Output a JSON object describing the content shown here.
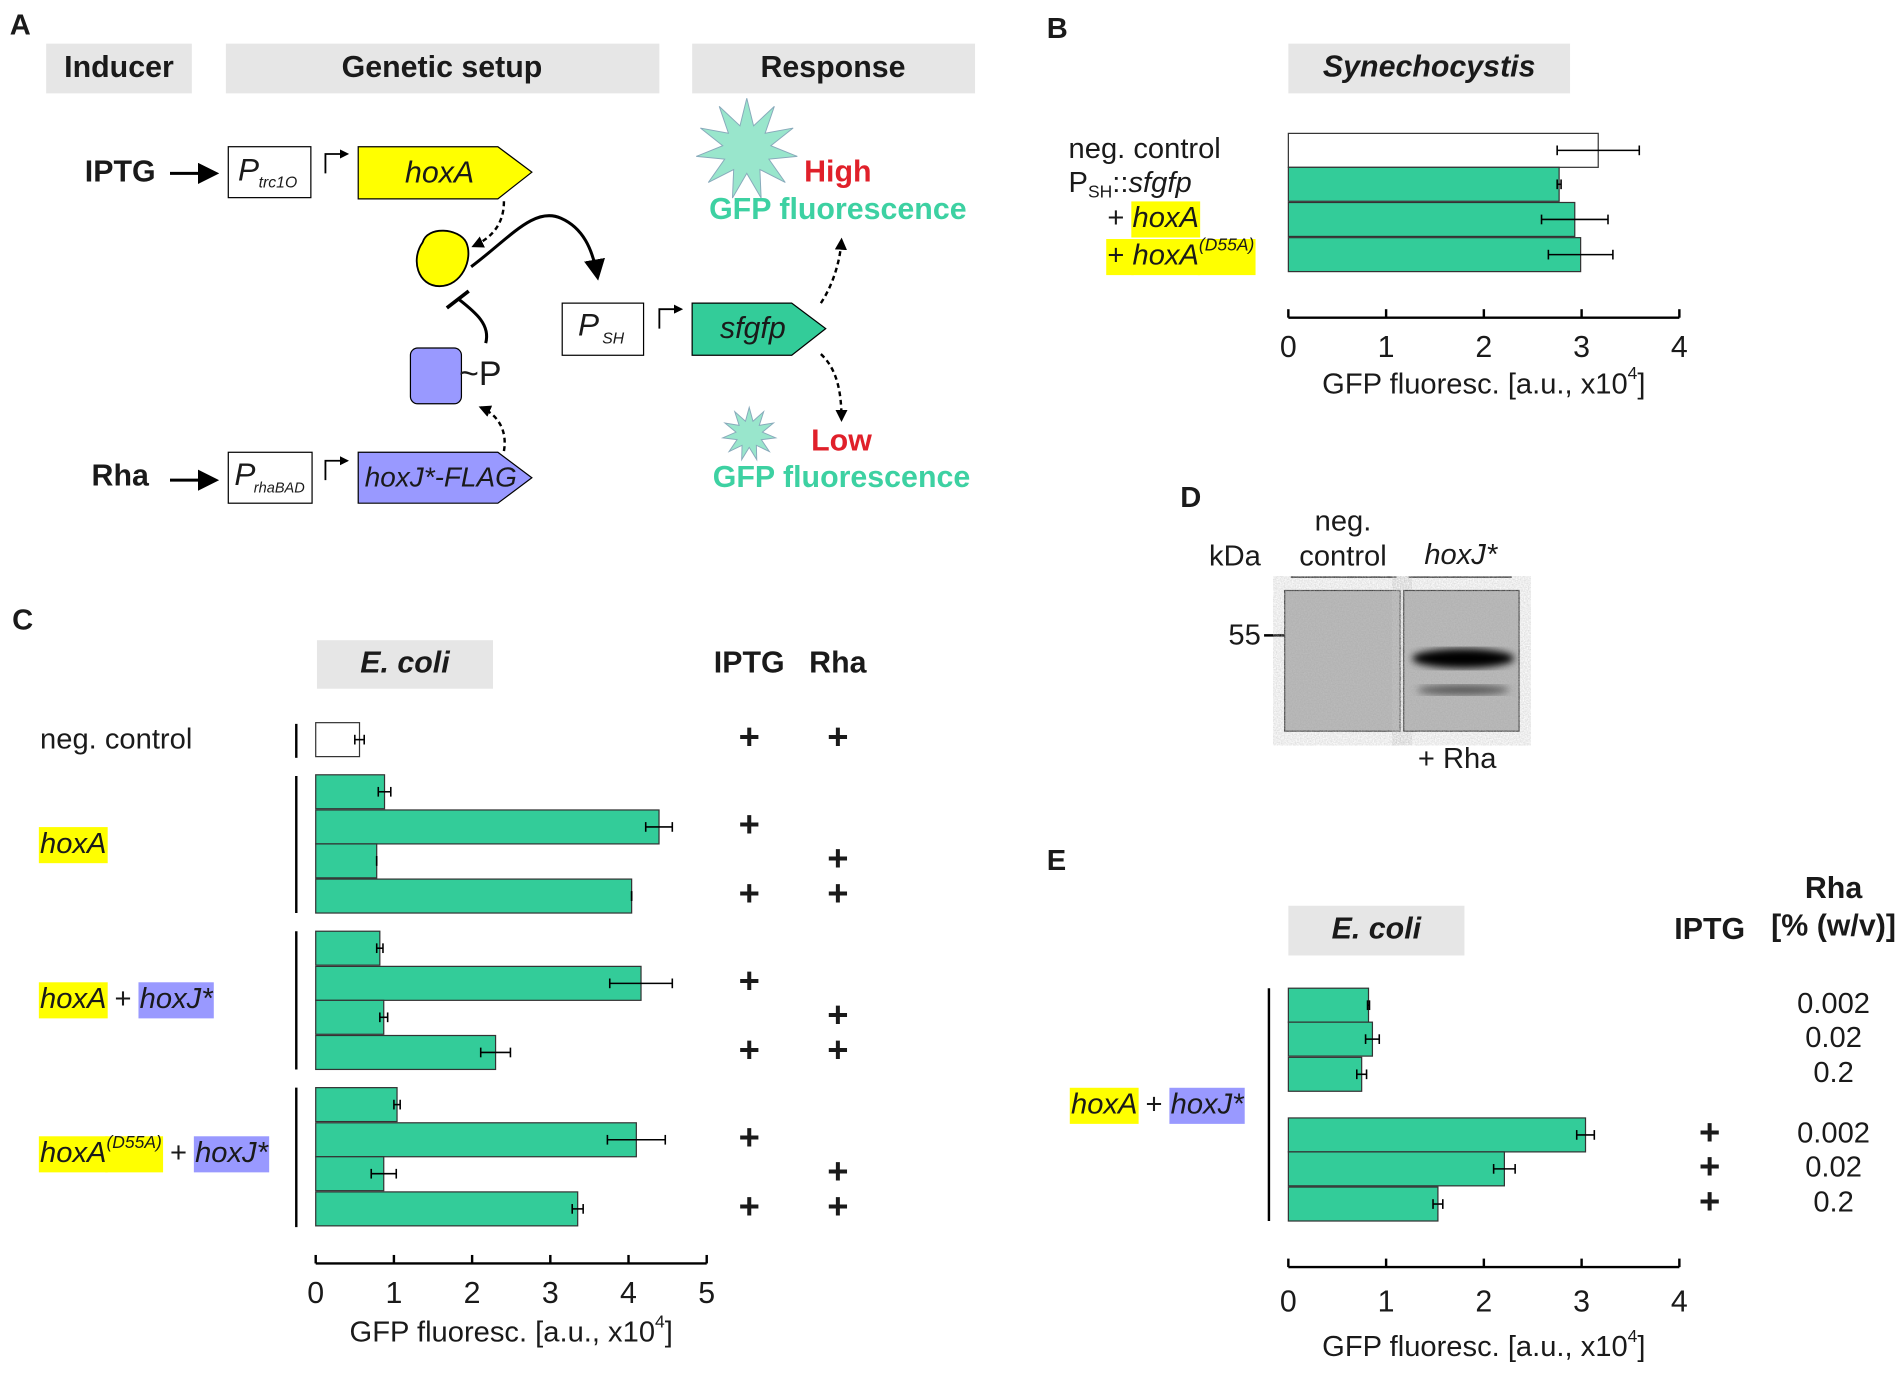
{
  "diagram": {
    "label": "A",
    "headers": [
      "Inducer",
      "Genetic setup",
      "Response"
    ],
    "inducers": [
      "IPTG",
      "Rha"
    ],
    "promoters": [
      {
        "name": "P",
        "sub": "trc1O"
      },
      {
        "name": "P",
        "sub": "rhaBAD"
      },
      {
        "name": "P",
        "sub": "SH"
      }
    ],
    "genes": [
      "hoxA",
      "hoxJ*-FLAG",
      "sfgfp"
    ],
    "phosphate": "~P",
    "responses": [
      {
        "level": "High",
        "text": "GFP fluorescence"
      },
      {
        "level": "Low",
        "text": "GFP fluorescence"
      }
    ]
  },
  "blot": {
    "label": "D",
    "unit": "kDa",
    "lanes": [
      [
        "neg.",
        "control"
      ],
      [
        "hoxJ*"
      ]
    ],
    "marker": "55",
    "treatment": "+ Rha"
  },
  "chart_data": [
    {
      "type": "bar",
      "orientation": "horizontal",
      "panel": "B",
      "title": "Synechocystis",
      "groups": [
        {
          "label": [
            {
              "text": "neg. control"
            }
          ],
          "values": [
            3.17
          ],
          "errors": [
            0.42
          ],
          "color": "#ffffff"
        },
        {
          "label": [
            {
              "text": "P"
            },
            {
              "text": "SH",
              "shift": "sub"
            },
            {
              "text": "::"
            },
            {
              "text": "sfgfp",
              "italic": true
            }
          ],
          "values": [
            2.77
          ],
          "errors": [
            0.02
          ],
          "color": "#33cc99"
        },
        {
          "label": [
            {
              "text": "+ "
            },
            {
              "text": "hoxA",
              "italic": true,
              "highlight": "#ffff00"
            }
          ],
          "values": [
            2.93
          ],
          "errors": [
            0.34
          ],
          "color": "#33cc99"
        },
        {
          "label": [
            {
              "text": "+ ",
              "highlight": "#ffff00"
            },
            {
              "text": "hoxA",
              "italic": true,
              "highlight": "#ffff00"
            },
            {
              "text": "(D55A)",
              "italic": true,
              "shift": "sup",
              "highlight": "#ffff00"
            }
          ],
          "values": [
            2.99
          ],
          "errors": [
            0.33
          ],
          "color": "#33cc99"
        }
      ],
      "xlim": [
        0,
        4
      ],
      "xticks": [
        0,
        1,
        2,
        3,
        4
      ],
      "xlabel": [
        {
          "text": "GFP fluoresc. [a.u., x10"
        },
        {
          "text": "4",
          "shift": "sup"
        },
        {
          "text": "]"
        }
      ]
    },
    {
      "type": "bar",
      "orientation": "horizontal",
      "panel": "C",
      "title": "E. coli",
      "column_headers": [
        "IPTG",
        "Rha"
      ],
      "groups": [
        {
          "label": [
            {
              "text": "neg. control"
            }
          ],
          "values": [
            0.56
          ],
          "errors": [
            0.06
          ],
          "color": "#ffffff",
          "columns": [
            [
              "+"
            ],
            [
              "+"
            ]
          ]
        },
        {
          "label": [
            {
              "text": "hoxA",
              "italic": true,
              "highlight": "#ffff00"
            }
          ],
          "values": [
            0.88,
            4.39,
            0.78,
            4.04
          ],
          "errors": [
            0.08,
            0.17,
            0,
            0
          ],
          "color": "#33cc99",
          "columns": [
            [
              null,
              "+",
              null,
              "+"
            ],
            [
              null,
              null,
              "+",
              "+"
            ]
          ]
        },
        {
          "label": [
            {
              "text": "hoxA",
              "italic": true,
              "highlight": "#ffff00"
            },
            {
              "text": " + "
            },
            {
              "text": "hoxJ*",
              "italic": true,
              "highlight": "#9999ff"
            }
          ],
          "values": [
            0.82,
            4.16,
            0.87,
            2.3
          ],
          "errors": [
            0.04,
            0.4,
            0.05,
            0.19
          ],
          "color": "#33cc99",
          "columns": [
            [
              null,
              "+",
              null,
              "+"
            ],
            [
              null,
              null,
              "+",
              "+"
            ]
          ]
        },
        {
          "label": [
            {
              "text": "hoxA",
              "italic": true,
              "highlight": "#ffff00"
            },
            {
              "text": "(D55A)",
              "italic": true,
              "shift": "sup",
              "highlight": "#ffff00"
            },
            {
              "text": " + "
            },
            {
              "text": "hoxJ*",
              "italic": true,
              "highlight": "#9999ff"
            }
          ],
          "values": [
            1.04,
            4.1,
            0.87,
            3.35
          ],
          "errors": [
            0.04,
            0.37,
            0.16,
            0.07
          ],
          "color": "#33cc99",
          "columns": [
            [
              null,
              "+",
              null,
              "+"
            ],
            [
              null,
              null,
              "+",
              "+"
            ]
          ]
        }
      ],
      "xlim": [
        0,
        5
      ],
      "xticks": [
        0,
        1,
        2,
        3,
        4,
        5
      ],
      "xlabel": [
        {
          "text": "GFP fluoresc. [a.u., x10"
        },
        {
          "text": "4",
          "shift": "sup"
        },
        {
          "text": "]"
        }
      ]
    },
    {
      "type": "bar",
      "orientation": "horizontal",
      "panel": "E",
      "title": "E. coli",
      "column_headers": [
        "IPTG",
        [
          "Rha",
          "[% (w/v)]"
        ]
      ],
      "groups": [
        {
          "label": [
            {
              "text": "hoxA",
              "italic": true,
              "highlight": "#ffff00"
            },
            {
              "text": " + "
            },
            {
              "text": "hoxJ*",
              "italic": true,
              "highlight": "#9999ff"
            }
          ],
          "values": [
            0.82,
            0.86,
            0.75,
            3.04,
            2.21,
            1.53
          ],
          "errors": [
            0.01,
            0.07,
            0.05,
            0.09,
            0.11,
            0.05
          ],
          "color": "#33cc99",
          "columns": [
            [
              null,
              null,
              null,
              "+",
              "+",
              "+"
            ],
            [
              0.002,
              0.02,
              0.2,
              0.002,
              0.02,
              0.2
            ]
          ]
        }
      ],
      "xlim": [
        0,
        4
      ],
      "xticks": [
        0,
        1,
        2,
        3,
        4
      ],
      "xlabel": [
        {
          "text": "GFP fluoresc. [a.u., x10"
        },
        {
          "text": "4",
          "shift": "sup"
        },
        {
          "text": "]"
        }
      ]
    }
  ]
}
